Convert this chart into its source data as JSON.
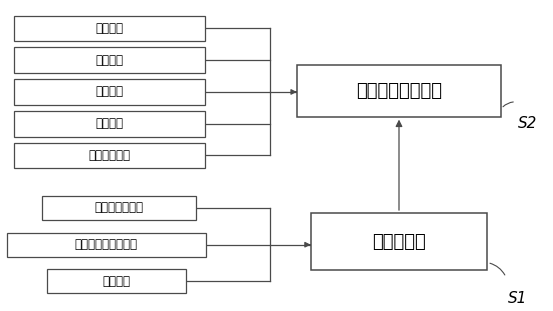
{
  "background_color": "#ffffff",
  "border_color": "#4a4a4a",
  "text_color": "#000000",
  "lt_labels": [
    "载体选取",
    "活性氧化铝金属浸渍",
    "活性炭金属浸渍"
  ],
  "lb_labels": [
    "石化废水分级",
    "一级处理",
    "二级处理",
    "三级处理",
    "四级处理"
  ],
  "r_top_label": "催化剂制备",
  "r_bot_label": "石化废水分步处理",
  "s1_label": "S1",
  "s2_label": "S2",
  "font_name": "SimSun",
  "font_size_small": 8.5,
  "font_size_large": 13,
  "font_size_s_label": 11
}
